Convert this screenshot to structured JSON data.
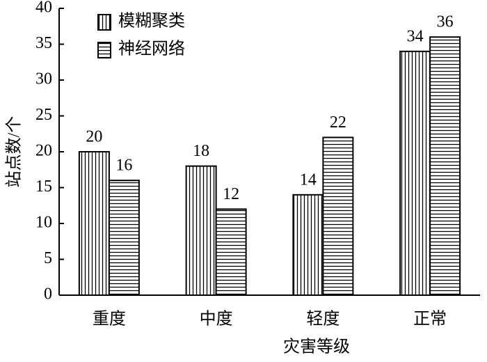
{
  "chart_data": {
    "type": "bar",
    "categories": [
      "重度",
      "中度",
      "轻度",
      "正常"
    ],
    "series": [
      {
        "name": "模糊聚类",
        "color": "#000000",
        "hatch": "vertical",
        "values": [
          20,
          18,
          14,
          34
        ]
      },
      {
        "name": "神经网络",
        "color": "#000000",
        "hatch": "horizontal",
        "values": [
          16,
          12,
          22,
          36
        ]
      }
    ],
    "xlabel": "灾害等级",
    "ylabel": "站点数/个",
    "ylim": [
      0,
      40
    ],
    "yticks": [
      0,
      5,
      10,
      15,
      20,
      25,
      30,
      35,
      40
    ],
    "grid": false,
    "legend": "upper left"
  }
}
